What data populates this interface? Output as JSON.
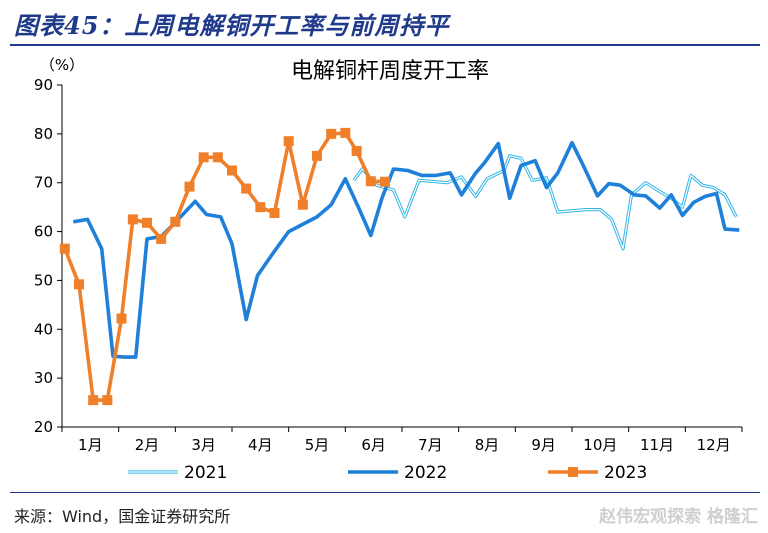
{
  "figure_title": "图表45：上周电解铜开工率与前周持平",
  "source": "来源：Wind，国金证券研究所",
  "watermark": "赵伟宏观探索  格隆汇",
  "colors": {
    "s2021": "#33b5e8",
    "s2022": "#1f80d9",
    "s2023": "#f07f2a",
    "brand": "#1f3a8a"
  },
  "chart_data": {
    "type": "line",
    "title": "电解铜杆周度开工率",
    "ylabel": "（%）",
    "xlabel": "",
    "ylim": [
      20,
      90
    ],
    "yticks": [
      20,
      30,
      40,
      50,
      60,
      70,
      80,
      90
    ],
    "xlim": [
      1,
      13
    ],
    "month_labels": [
      "1月",
      "2月",
      "3月",
      "4月",
      "5月",
      "6月",
      "7月",
      "8月",
      "9月",
      "10月",
      "11月",
      "12月"
    ],
    "legend_position": "bottom",
    "series": [
      {
        "name": "2021",
        "style": "double-line",
        "points": [
          [
            6.15,
            70.5
          ],
          [
            6.3,
            72.8
          ],
          [
            6.55,
            69.5
          ],
          [
            6.85,
            68.5
          ],
          [
            7.05,
            63.0
          ],
          [
            7.3,
            70.5
          ],
          [
            7.8,
            70.0
          ],
          [
            8.05,
            71.2
          ],
          [
            8.3,
            67.2
          ],
          [
            8.5,
            70.8
          ],
          [
            8.8,
            72.5
          ],
          [
            8.9,
            75.5
          ],
          [
            9.1,
            75.0
          ],
          [
            9.3,
            70.5
          ],
          [
            9.55,
            71.0
          ],
          [
            9.75,
            64.0
          ],
          [
            10.25,
            64.5
          ],
          [
            10.5,
            64.5
          ],
          [
            10.7,
            62.5
          ],
          [
            10.9,
            56.5
          ],
          [
            11.05,
            67.5
          ],
          [
            11.3,
            70.0
          ],
          [
            11.55,
            68.2
          ],
          [
            11.75,
            66.8
          ],
          [
            11.95,
            65.0
          ],
          [
            12.1,
            71.5
          ],
          [
            12.3,
            69.5
          ],
          [
            12.5,
            69.0
          ],
          [
            12.7,
            67.5
          ],
          [
            12.9,
            63.0
          ]
        ]
      },
      {
        "name": "2022",
        "style": "thick-line",
        "points": [
          [
            1.2,
            62.0
          ],
          [
            1.45,
            62.5
          ],
          [
            1.7,
            56.5
          ],
          [
            1.9,
            34.5
          ],
          [
            2.1,
            34.3
          ],
          [
            2.3,
            34.3
          ],
          [
            2.5,
            58.5
          ],
          [
            2.75,
            59.0
          ],
          [
            3.05,
            62.5
          ],
          [
            3.35,
            66.2
          ],
          [
            3.55,
            63.5
          ],
          [
            3.8,
            63.0
          ],
          [
            4.0,
            57.5
          ],
          [
            4.25,
            42.0
          ],
          [
            4.45,
            51.0
          ],
          [
            4.75,
            56.0
          ],
          [
            5.0,
            60.0
          ],
          [
            5.5,
            63.0
          ],
          [
            5.75,
            65.5
          ],
          [
            6.0,
            70.8
          ],
          [
            6.25,
            64.5
          ],
          [
            6.45,
            59.2
          ],
          [
            6.65,
            67.0
          ],
          [
            6.85,
            72.8
          ],
          [
            7.1,
            72.5
          ],
          [
            7.35,
            71.5
          ],
          [
            7.6,
            71.5
          ],
          [
            7.85,
            72.0
          ],
          [
            8.05,
            67.5
          ],
          [
            8.3,
            72.0
          ],
          [
            8.45,
            74.0
          ],
          [
            8.7,
            78.0
          ],
          [
            8.9,
            66.8
          ],
          [
            9.1,
            73.5
          ],
          [
            9.35,
            74.5
          ],
          [
            9.55,
            69.0
          ],
          [
            9.75,
            72.0
          ],
          [
            10.0,
            78.2
          ],
          [
            10.2,
            73.5
          ],
          [
            10.45,
            67.3
          ],
          [
            10.65,
            69.8
          ],
          [
            10.85,
            69.5
          ],
          [
            11.1,
            67.5
          ],
          [
            11.3,
            67.3
          ],
          [
            11.55,
            64.8
          ],
          [
            11.75,
            67.5
          ],
          [
            11.95,
            63.3
          ],
          [
            12.15,
            66.0
          ],
          [
            12.35,
            67.2
          ],
          [
            12.55,
            67.8
          ],
          [
            12.7,
            60.5
          ],
          [
            12.95,
            60.3
          ]
        ]
      },
      {
        "name": "2023",
        "style": "line-square-markers",
        "points": [
          [
            1.05,
            56.5
          ],
          [
            1.3,
            49.2
          ],
          [
            1.55,
            25.5
          ],
          [
            1.8,
            25.5
          ],
          [
            2.05,
            42.2
          ],
          [
            2.25,
            62.5
          ],
          [
            2.5,
            61.8
          ],
          [
            2.75,
            58.5
          ],
          [
            3.0,
            62.0
          ],
          [
            3.25,
            69.2
          ],
          [
            3.5,
            75.2
          ],
          [
            3.75,
            75.2
          ],
          [
            4.0,
            72.5
          ],
          [
            4.25,
            68.8
          ],
          [
            4.5,
            65.0
          ],
          [
            4.75,
            63.8
          ],
          [
            5.0,
            78.5
          ],
          [
            5.25,
            65.5
          ],
          [
            5.5,
            75.5
          ],
          [
            5.75,
            80.0
          ],
          [
            6.0,
            80.2
          ],
          [
            6.2,
            76.5
          ],
          [
            6.45,
            70.3
          ],
          [
            6.7,
            70.2
          ]
        ]
      }
    ]
  }
}
